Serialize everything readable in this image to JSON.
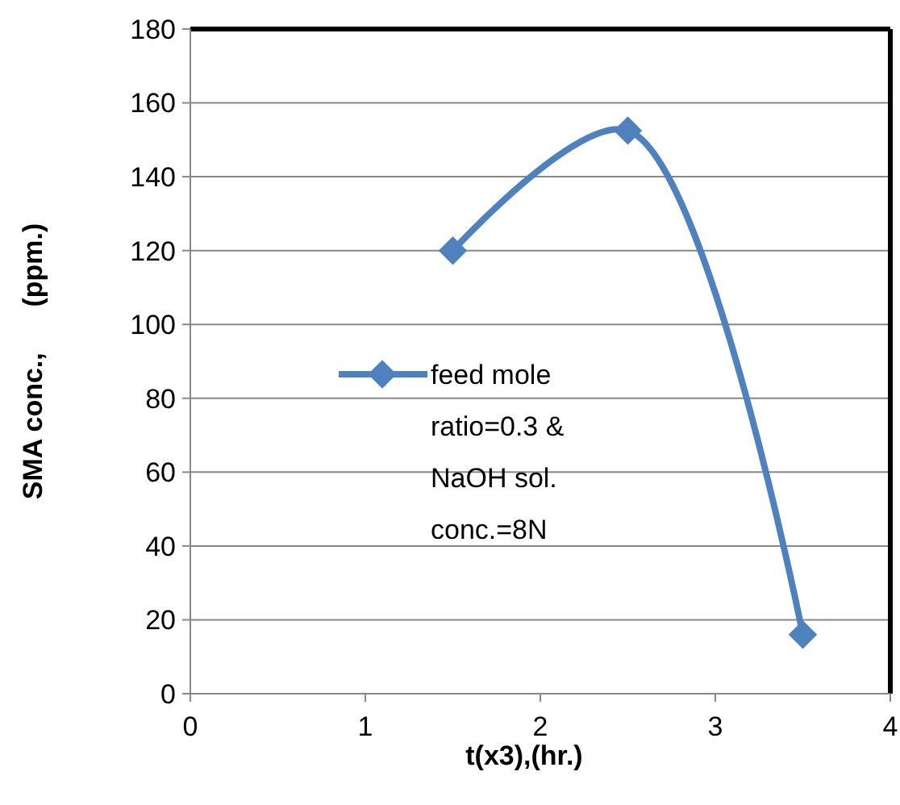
{
  "chart_data": {
    "type": "line",
    "xlabel": "t(x3),(hr.)",
    "ylabel": "SMA conc.,      (ppm.)",
    "x": [
      1.5,
      2.5,
      3.5
    ],
    "series": [
      {
        "name": "feed mole ratio=0.3 & NaOH sol. conc.=8N",
        "color": "#4f81bd",
        "values": [
          120,
          152.5,
          16
        ]
      }
    ],
    "xlim": [
      0,
      4
    ],
    "xticks": [
      0,
      1,
      2,
      3,
      4
    ],
    "ylim": [
      0,
      180
    ],
    "yticks": [
      0,
      20,
      40,
      60,
      80,
      100,
      120,
      140,
      160,
      180
    ],
    "grid": "y",
    "legend": "left",
    "marker": "diamond",
    "line_style": "solid"
  }
}
